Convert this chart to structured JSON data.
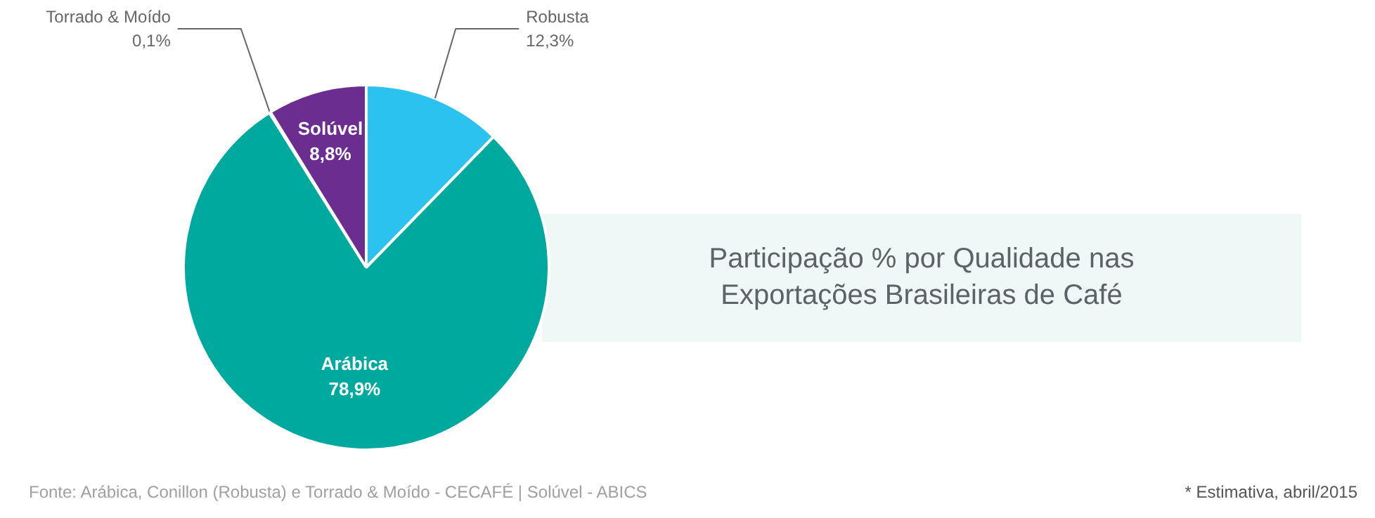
{
  "chart_data": {
    "type": "pie",
    "title": "Participação % por Qualidade nas Exportações Brasileiras de Café",
    "categories": [
      "Robusta",
      "Arábica",
      "Torrado & Moído",
      "Solúvel"
    ],
    "values": [
      12.3,
      78.9,
      0.1,
      8.8
    ],
    "colors": [
      "#2bc2f0",
      "#00a99d",
      "#0e8c82",
      "#6b2d8f"
    ],
    "value_labels": [
      "12,3%",
      "78,9%",
      "0,1%",
      "8,8%"
    ],
    "annotations": [
      "Fonte: Arábica, Conillon (Robusta) e Torrado & Moído - CECAFÉ  |  Solúvel - ABICS",
      "* Estimativa, abril/2015"
    ]
  }
}
